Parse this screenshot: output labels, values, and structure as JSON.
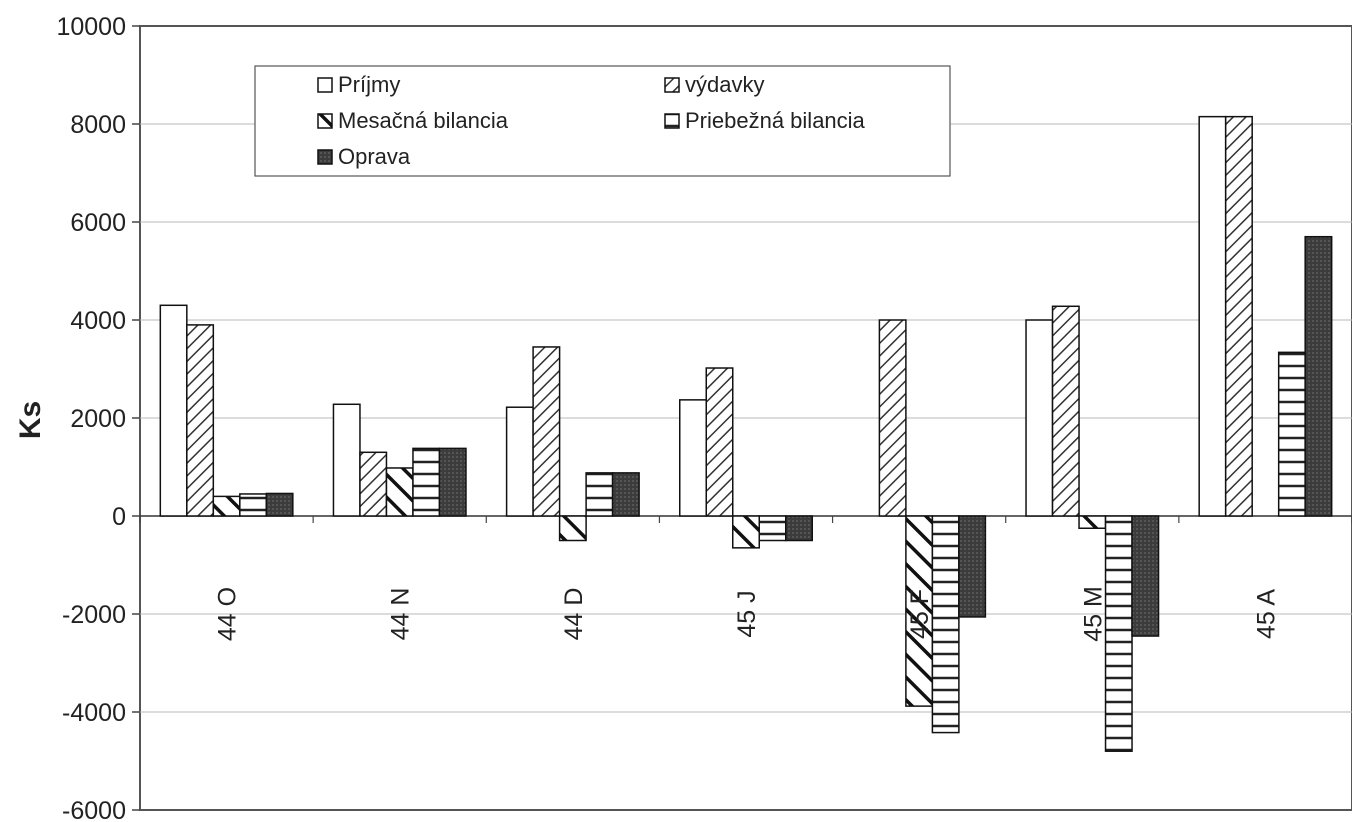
{
  "chart_data": {
    "type": "bar",
    "title": "",
    "xlabel": "",
    "ylabel": "Ks",
    "ylim": [
      -6000,
      10000
    ],
    "yticks": [
      -6000,
      -4000,
      -2000,
      0,
      2000,
      4000,
      6000,
      8000,
      10000
    ],
    "grid": true,
    "legend_position": "top-left",
    "categories": [
      "44 O",
      "44 N",
      "44 D",
      "45 J",
      "45 F",
      "45 M",
      "45 A"
    ],
    "series": [
      {
        "name": "Príjmy",
        "pattern": "white",
        "values": [
          4300,
          2280,
          2220,
          2370,
          0,
          4000,
          8150
        ]
      },
      {
        "name": "výdavky",
        "pattern": "diag-light",
        "values": [
          3900,
          1300,
          3450,
          3020,
          4000,
          4280,
          8150
        ]
      },
      {
        "name": "Mesačná bilancia",
        "pattern": "diag-bold",
        "values": [
          400,
          980,
          -500,
          -650,
          -3880,
          -250,
          0
        ]
      },
      {
        "name": "Priebežná bilancia",
        "pattern": "horizontal",
        "values": [
          450,
          1380,
          880,
          -500,
          -4420,
          -4800,
          3340
        ]
      },
      {
        "name": "Oprava",
        "pattern": "solid-dark",
        "values": [
          460,
          1380,
          880,
          -500,
          -2060,
          -2450,
          5700
        ]
      }
    ]
  }
}
